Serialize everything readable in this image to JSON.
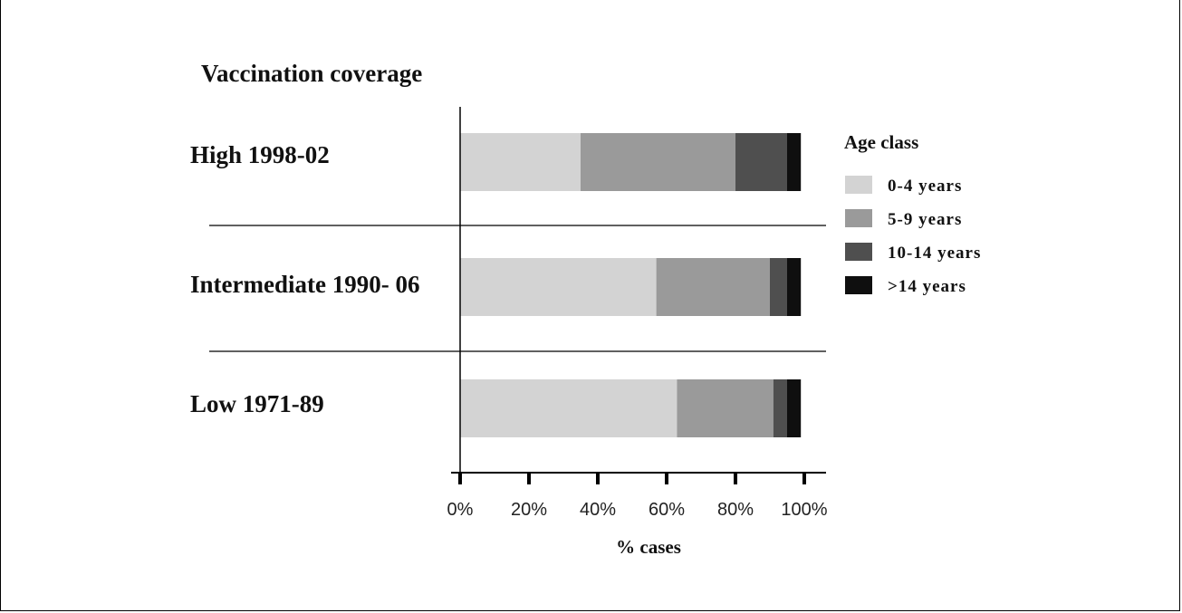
{
  "chart_data": {
    "type": "bar",
    "orientation": "horizontal",
    "stacked": true,
    "title": "Vaccination coverage",
    "xlabel": "% cases",
    "ylabel": "",
    "xlim": [
      0,
      100
    ],
    "x_ticks": [
      "0%",
      "20%",
      "40%",
      "60%",
      "80%",
      "100%"
    ],
    "categories": [
      "High 1998-02",
      "Intermediate 1990- 06",
      "Low 1971-89"
    ],
    "series": [
      {
        "name": "0-4 years",
        "color": "#d3d3d3",
        "values": [
          35,
          57,
          63
        ]
      },
      {
        "name": "5-9 years",
        "color": "#9a9a9a",
        "values": [
          45,
          33,
          28
        ]
      },
      {
        "name": "10-14 years",
        "color": "#4f4f4f",
        "values": [
          15,
          5,
          4
        ]
      },
      {
        "name": ">14 years",
        "color": "#0f0f0f",
        "values": [
          4,
          4,
          4
        ]
      }
    ],
    "legend": {
      "title": "Age class",
      "position": "right"
    },
    "grid": false
  }
}
